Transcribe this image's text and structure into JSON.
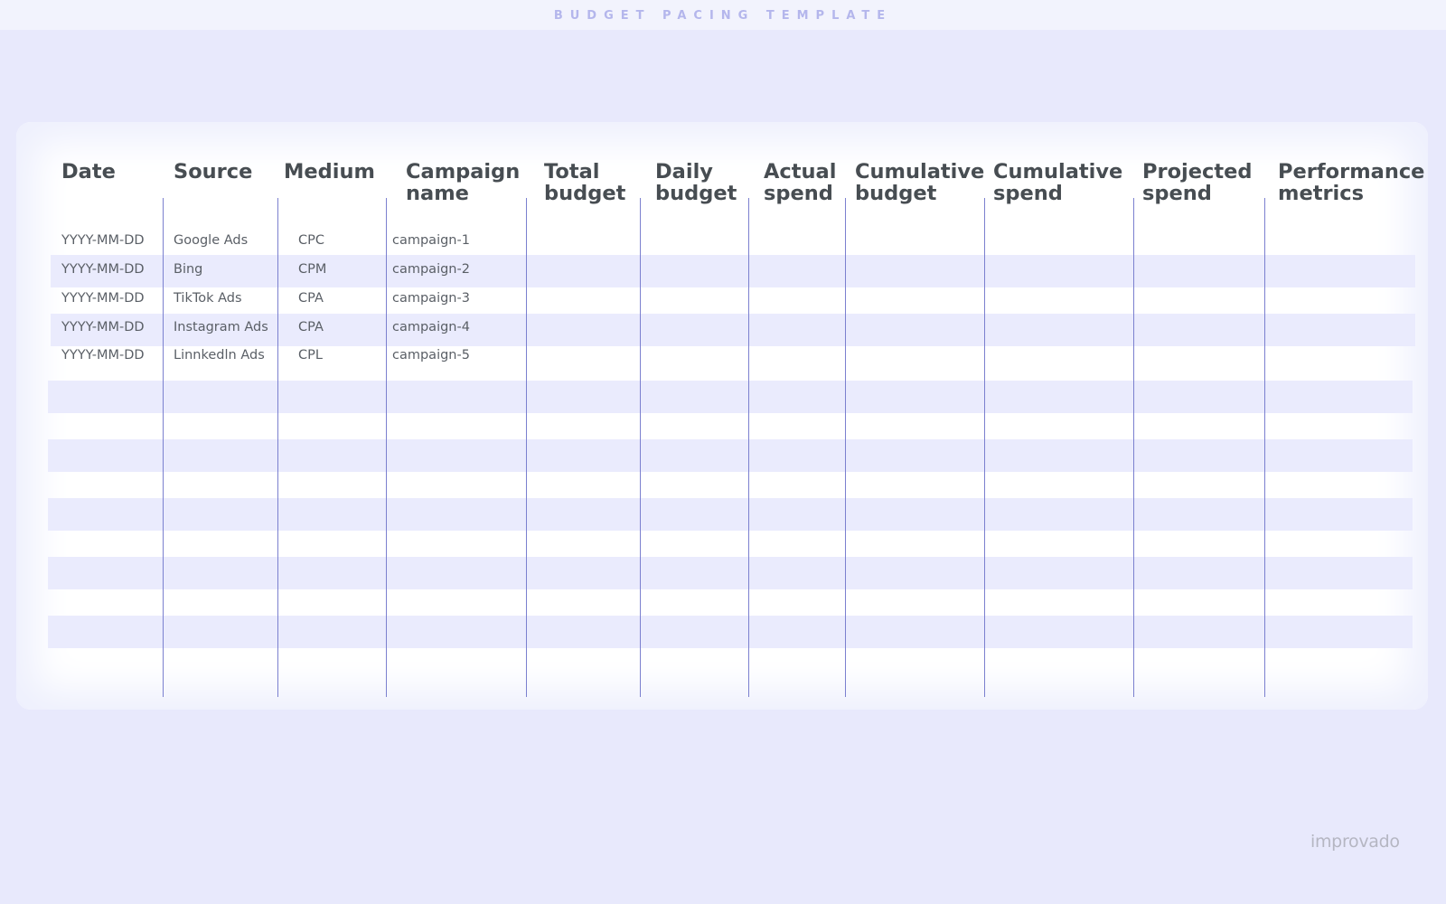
{
  "header": {
    "title": "BUDGET PACING TEMPLATE"
  },
  "table": {
    "columns": [
      "Date",
      "Source",
      "Medium",
      "Campaign\nname",
      "Total\nbudget",
      "Daily\nbudget",
      "Actual\nspend",
      "Cumulative\nbudget",
      "Cumulative\nspend",
      "Projected\nspend",
      "Performance\nmetrics"
    ],
    "rows": [
      {
        "date": "YYYY-MM-DD",
        "source": "Google Ads",
        "medium": "CPC",
        "campaign": "campaign-1"
      },
      {
        "date": "YYYY-MM-DD",
        "source": "Bing",
        "medium": "CPM",
        "campaign": "campaign-2"
      },
      {
        "date": "YYYY-MM-DD",
        "source": "TikTok Ads",
        "medium": "CPA",
        "campaign": "campaign-3"
      },
      {
        "date": "YYYY-MM-DD",
        "source": "Instagram Ads",
        "medium": "CPA",
        "campaign": "campaign-4"
      },
      {
        "date": "YYYY-MM-DD",
        "source": "Linnkedln Ads",
        "medium": "CPL",
        "campaign": "campaign-5"
      }
    ]
  },
  "footer": {
    "brand": "improvado"
  },
  "colors": {
    "background": "#e8e9fc",
    "row_band": "#eaebfd",
    "divider": "#7b80cf",
    "title": "#b4b6ec",
    "header_text": "#474d52"
  }
}
